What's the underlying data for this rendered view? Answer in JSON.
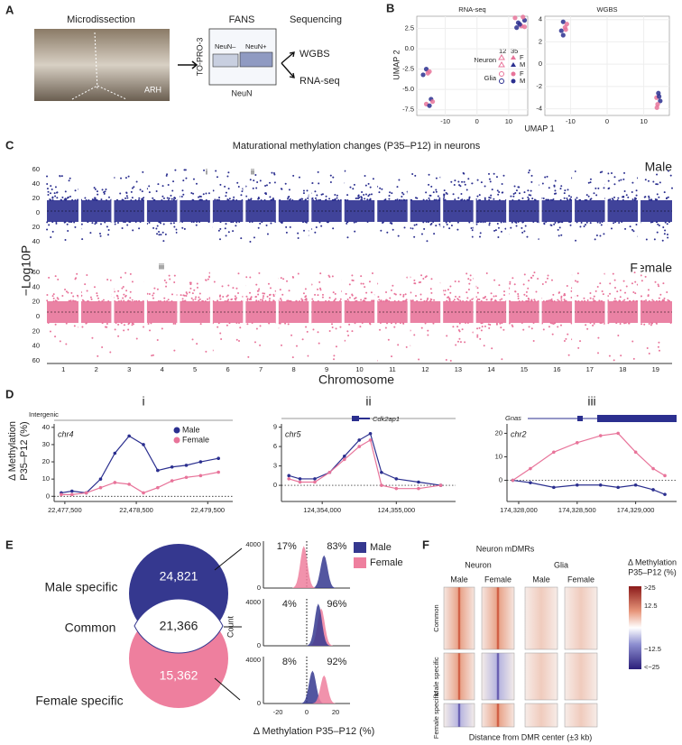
{
  "panel_labels": [
    "A",
    "B",
    "C",
    "D",
    "E",
    "F"
  ],
  "panel_a": {
    "titles": [
      "Microdissection",
      "FANS",
      "Sequencing"
    ],
    "region": "ARH",
    "y_axis": "TO-PRO-3",
    "x_axis": "NeuN",
    "gates": [
      "NeuN–",
      "NeuN+"
    ],
    "outputs": [
      "WGBS",
      "RNA-seq"
    ]
  },
  "panel_b": {
    "y_axis": "UMAP 2",
    "x_axis": "UMAP 1",
    "legend": {
      "ages": [
        "12",
        "35"
      ],
      "cell_types": [
        "Neuron",
        "Glia"
      ],
      "sexes": [
        "F",
        "M",
        "F",
        "M"
      ]
    },
    "plots": [
      {
        "title": "RNA-seq",
        "xlim": [
          -19,
          16
        ],
        "ylim": [
          -8.2,
          4
        ],
        "xticks": [
          -10,
          0,
          10
        ],
        "yticks": [
          {
            "value": 2.5,
            "label": "2.5"
          },
          {
            "value": 0,
            "label": "0.0"
          },
          {
            "value": -2.5,
            "label": "-2.5"
          },
          {
            "value": -5,
            "label": "-5.0"
          },
          {
            "value": -7.5,
            "label": "-7.5"
          }
        ],
        "x": [
          12,
          13,
          14,
          15,
          12.5,
          14.5,
          13.5,
          15,
          -16,
          -15.5,
          -17,
          -15,
          -14.5,
          -16,
          -15,
          -14
        ],
        "y": [
          3.8,
          3.2,
          2.8,
          3.5,
          2.6,
          3.9,
          3,
          2.7,
          -2.5,
          -3,
          -3.2,
          -2.8,
          -6.2,
          -6.8,
          -7,
          -6.5
        ],
        "colors": [
          "#e8749a",
          "#2b2f8f",
          "#e8749a",
          "#2b2f8f",
          "#2b2f8f",
          "#e8749a",
          "#2b2f8f",
          "#e8749a",
          "#2b2f8f",
          "#e8749a",
          "#2b2f8f",
          "#e8749a",
          "#2b2f8f",
          "#e8749a",
          "#2b2f8f",
          "#e8749a"
        ]
      },
      {
        "title": "WGBS",
        "xlim": [
          -17,
          17
        ],
        "ylim": [
          -4.6,
          4.3
        ],
        "xticks": [
          -10,
          0,
          10
        ],
        "yticks": [
          4,
          2,
          0,
          -2,
          -4
        ],
        "x": [
          -12,
          -11.5,
          -12.5,
          -11,
          -12,
          -11.3,
          14,
          13.5,
          14.5,
          13.8,
          14.2,
          13.6
        ],
        "y": [
          3.8,
          3.3,
          3,
          3.6,
          2.6,
          3.1,
          -2.6,
          -3,
          -3.3,
          -3.6,
          -2.9,
          -3.9
        ],
        "colors": [
          "#2b2f8f",
          "#e8749a",
          "#2b2f8f",
          "#e8749a",
          "#2b2f8f",
          "#e8749a",
          "#2b2f8f",
          "#e8749a",
          "#2b2f8f",
          "#e8749a",
          "#2b2f8f",
          "#e8749a"
        ]
      }
    ]
  },
  "panel_c": {
    "title": "Maturational methylation changes (P35–P12) in neurons",
    "y_axis": "−Log10P",
    "x_axis": "Chromosome",
    "tracks": [
      "Male",
      "Female"
    ],
    "annotations": [
      "i",
      "ii",
      "iii"
    ],
    "male_yticks": [
      "60",
      "40",
      "20",
      "0",
      "20",
      "40"
    ],
    "female_yticks": [
      "60",
      "40",
      "20",
      "0",
      "20",
      "40",
      "60"
    ],
    "chromosomes": [
      "1",
      "2",
      "3",
      "4",
      "5",
      "6",
      "7",
      "8",
      "9",
      "10",
      "11",
      "12",
      "13",
      "14",
      "15",
      "16",
      "17",
      "18",
      "19"
    ]
  },
  "panel_d": {
    "y_axis": [
      "Δ Methylation",
      "P35–P12 (%)"
    ],
    "legend": [
      "Male",
      "Female"
    ],
    "track_labels": [
      "Intergenic",
      "Cdk2ap1",
      "Gnas"
    ],
    "plots": [
      {
        "label": "i",
        "chr": "chr4",
        "xlim": [
          22477350,
          22479850
        ],
        "ylim": [
          -3,
          42
        ],
        "yticks": [
          40,
          30,
          20,
          10,
          0
        ],
        "xticks": [
          {
            "value": 22477500,
            "label": "22,477,500"
          },
          {
            "value": 22478500,
            "label": "22,478,500"
          },
          {
            "value": 22479500,
            "label": "22,479,500"
          }
        ],
        "x": [
          22477450,
          22477600,
          22477800,
          22478000,
          22478200,
          22478400,
          22478600,
          22478800,
          22479000,
          22479200,
          22479400,
          22479650
        ],
        "series": [
          {
            "name": "Male",
            "color": "#2b2f8f",
            "values": [
              2,
              3,
              2,
              10,
              25,
              35,
              30,
              15,
              17,
              18,
              20,
              22
            ]
          },
          {
            "name": "Female",
            "color": "#e8749a",
            "values": [
              1,
              1,
              2,
              5,
              8,
              7,
              2,
              5,
              9,
              11,
              12,
              14
            ]
          }
        ]
      },
      {
        "label": "ii",
        "chr": "chr5",
        "xlim": [
          124353450,
          124355800
        ],
        "ylim": [
          -2.5,
          9.5
        ],
        "yticks": [
          9,
          6,
          3,
          0
        ],
        "xticks": [
          {
            "value": 124354000,
            "label": "124,354,000"
          },
          {
            "value": 124355000,
            "label": "124,355,000"
          }
        ],
        "x": [
          124353550,
          124353700,
          124353900,
          124354100,
          124354300,
          124354500,
          124354650,
          124354800,
          124355000,
          124355300,
          124355600
        ],
        "series": [
          {
            "name": "Male",
            "color": "#2b2f8f",
            "values": [
              1.5,
              1,
              1,
              2,
              4.5,
              7,
              8,
              2,
              1,
              0.5,
              0
            ]
          },
          {
            "name": "Female",
            "color": "#e8749a",
            "values": [
              1,
              0.5,
              0.5,
              2,
              4,
              6,
              7,
              0,
              -0.5,
              -0.5,
              0
            ]
          }
        ]
      },
      {
        "label": "iii",
        "chr": "chr2",
        "xlim": [
          174327900,
          174329350
        ],
        "ylim": [
          -9,
          24
        ],
        "yticks": [
          20,
          10,
          0
        ],
        "xticks": [
          {
            "value": 174328000,
            "label": "174,328,000"
          },
          {
            "value": 174328500,
            "label": "174,328,500"
          },
          {
            "value": 174329000,
            "label": "174,329,000"
          }
        ],
        "x": [
          174327950,
          174328100,
          174328300,
          174328500,
          174328700,
          174328850,
          174329000,
          174329150,
          174329250
        ],
        "series": [
          {
            "name": "Male",
            "color": "#2b2f8f",
            "values": [
              0,
              -1,
              -3,
              -2,
              -2,
              -3,
              -2,
              -4,
              -6
            ]
          },
          {
            "name": "Female",
            "color": "#e8749a",
            "values": [
              0,
              5,
              12,
              16,
              19,
              20,
              12,
              5,
              2
            ]
          }
        ]
      }
    ]
  },
  "panel_e": {
    "groups": [
      "Male specific",
      "Common",
      "Female specific"
    ],
    "counts": [
      "24,821",
      "21,366",
      "15,362"
    ],
    "percents": [
      [
        "17%",
        "83%"
      ],
      [
        "4%",
        "96%"
      ],
      [
        "8%",
        "92%"
      ]
    ],
    "y_axis": "Count",
    "yticks": [
      "4000",
      "0"
    ],
    "xticks": [
      "-20",
      "0",
      "20"
    ],
    "x_axis": "Δ Methylation P35–P12 (%)",
    "legend": [
      "Male",
      "Female"
    ]
  },
  "panel_f": {
    "title": "Neuron mDMRs",
    "cell_types": [
      "Neuron",
      "Glia"
    ],
    "columns": [
      "Male",
      "Female",
      "Male",
      "Female"
    ],
    "rows": [
      "Common",
      "Male specific",
      "Female specific"
    ],
    "x_axis": "Distance from DMR center (±3 kb)",
    "colorbar_title": [
      "Δ Methylation",
      "P35–P12 (%)"
    ],
    "colorbar_ticks": [
      ">25",
      "12.5",
      "−12.5",
      "<−25"
    ]
  }
}
